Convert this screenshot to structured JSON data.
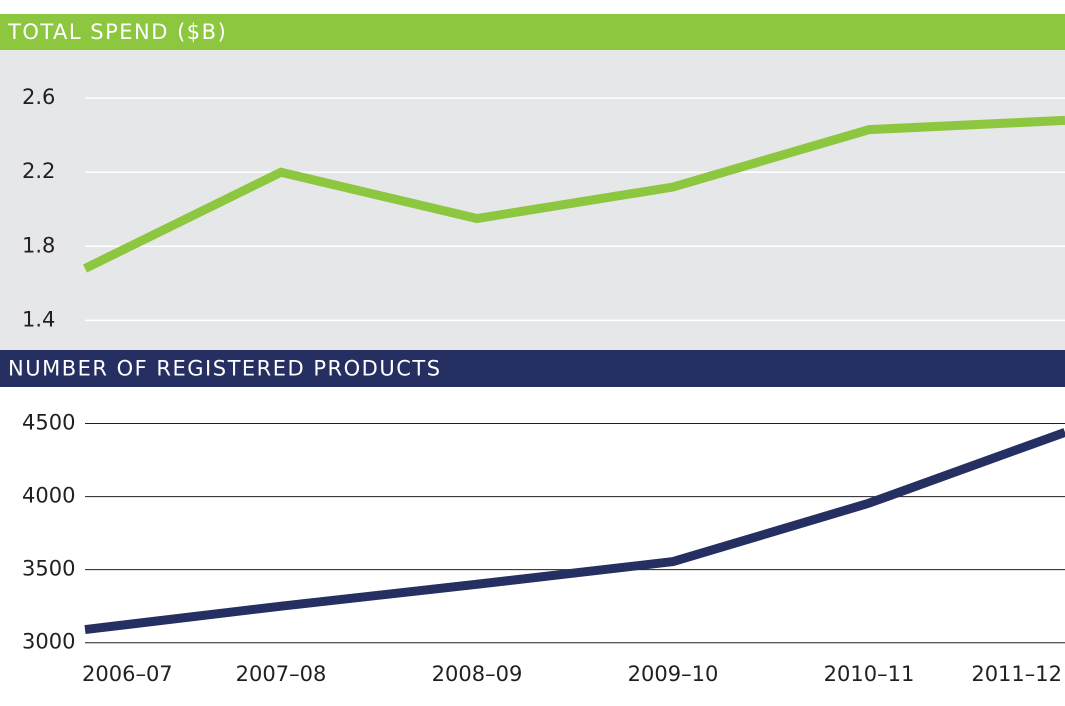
{
  "chart_data": [
    {
      "type": "line",
      "title": "TOTAL SPEND ($B)",
      "header_color": "#8dc63f",
      "background": "#e6e7e8",
      "grid_color": "#ffffff",
      "series": [
        {
          "color": "#8dc63f",
          "values": [
            1.68,
            2.2,
            1.95,
            2.12,
            2.43,
            2.48
          ]
        }
      ],
      "ylim": [
        1.24,
        2.86
      ],
      "yticks": [
        1.4,
        1.8,
        2.2,
        2.6
      ],
      "grid": true
    },
    {
      "type": "line",
      "title": "NUMBER OF REGISTERED PRODUCTS",
      "header_color": "#262f61",
      "background": "#ffffff",
      "grid_color": "#231f20",
      "categories": [
        "2006–07",
        "2007–08",
        "2008–09",
        "2009–10",
        "2010–11",
        "2011–12"
      ],
      "series": [
        {
          "color": "#262f61",
          "values": [
            3090,
            3250,
            3400,
            3555,
            3955,
            4440
          ]
        }
      ],
      "ylim": [
        2950,
        4750
      ],
      "yticks": [
        3000,
        3500,
        4000,
        4500
      ],
      "grid": true
    }
  ]
}
